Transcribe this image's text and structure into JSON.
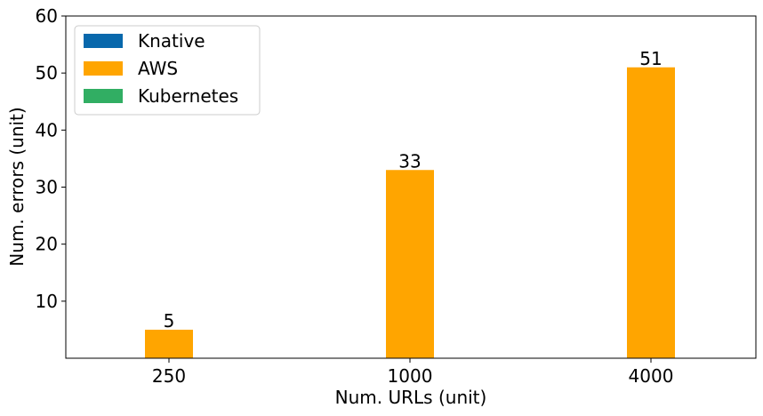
{
  "chart_data": {
    "type": "bar",
    "categories": [
      "250",
      "1000",
      "4000"
    ],
    "series": [
      {
        "name": "Knative",
        "color": "#0868ac",
        "values": [
          0,
          0,
          0
        ]
      },
      {
        "name": "AWS",
        "color": "#ffa500",
        "values": [
          5,
          33,
          51
        ]
      },
      {
        "name": "Kubernetes",
        "color": "#31ae63",
        "values": [
          0,
          0,
          0
        ]
      }
    ],
    "data_labels": [
      "5",
      "33",
      "51"
    ],
    "xlabel": "Num. URLs (unit)",
    "ylabel": "Num. errors (unit)",
    "ylim": [
      0,
      60
    ],
    "yticks": [
      10,
      20,
      30,
      40,
      50,
      60
    ],
    "grid": false,
    "legend_position": "top-left"
  }
}
